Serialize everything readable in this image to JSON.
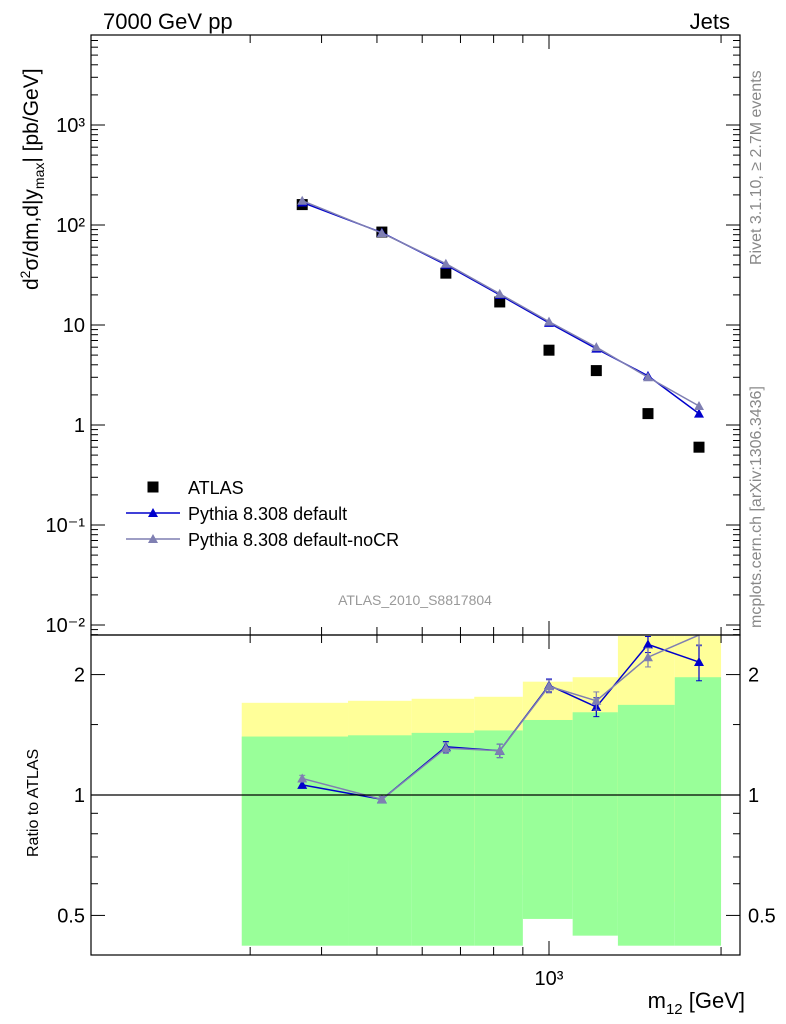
{
  "header": {
    "left": "7000 GeV pp",
    "right": "Jets"
  },
  "side_text": {
    "top": "Rivet 3.1.10, ≥ 2.7M events",
    "bottom": "mcplots.cern.ch [arXiv:1306.3436]"
  },
  "analysis_label": "ATLAS_2010_S8817804",
  "chart_data": [
    {
      "type": "scatter",
      "panel": "main",
      "ylabel": "d²σ/dm,d|y_max| [pb/GeV]",
      "y_scale": "log",
      "ylim": [
        0.008,
        8000
      ],
      "y_ticks": [
        {
          "v": 0.01,
          "label": "10⁻²"
        },
        {
          "v": 0.1,
          "label": "10⁻¹"
        },
        {
          "v": 1,
          "label": "1"
        },
        {
          "v": 10,
          "label": "10"
        },
        {
          "v": 100,
          "label": "10²"
        },
        {
          "v": 1000,
          "label": "10³"
        }
      ],
      "x_scale": "log",
      "xlim": [
        260,
        1950
      ],
      "x": [
        370,
        510,
        660,
        820,
        1000,
        1210,
        1490,
        1830
      ],
      "x_edges": [
        290,
        445,
        575,
        740,
        900,
        1100,
        1320,
        1660,
        2000
      ],
      "series": [
        {
          "name": "ATLAS",
          "color": "#000000",
          "marker": "square",
          "values": [
            160,
            85,
            33,
            17,
            5.6,
            3.5,
            1.3,
            0.6
          ]
        },
        {
          "name": "Pythia 8.308 default",
          "color": "#0000cc",
          "marker": "triangle",
          "values": [
            168,
            84,
            40,
            20,
            10.5,
            5.8,
            3.1,
            1.3
          ]
        },
        {
          "name": "Pythia 8.308 default-noCR",
          "color": "#7f7fb2",
          "marker": "triangle",
          "values": [
            175,
            83,
            41,
            20.5,
            10.8,
            6.0,
            3.0,
            1.55
          ]
        }
      ],
      "legend_position": "bottom-left"
    },
    {
      "type": "line",
      "panel": "ratio",
      "ylabel": "Ratio to ATLAS",
      "y_scale": "log",
      "ylim": [
        0.42,
        2.5
      ],
      "y_ticks": [
        {
          "v": 0.5,
          "label": "0.5"
        },
        {
          "v": 1,
          "label": "1"
        },
        {
          "v": 2,
          "label": "2"
        }
      ],
      "xlabel": "m₁₂ [GeV]",
      "x_ticks": [
        {
          "v": 1000,
          "label": "10³"
        }
      ],
      "x": [
        370,
        510,
        660,
        820,
        1000,
        1210,
        1490,
        1830
      ],
      "band_yellow": {
        "lo": [
          0.69,
          0.685,
          0.67,
          0.65,
          0.63,
          0.58,
          0.54,
          0.54
        ],
        "hi": [
          1.7,
          1.72,
          1.74,
          1.76,
          1.92,
          1.97,
          2.5,
          2.5
        ]
      },
      "band_green": {
        "lo": [
          0.42,
          0.42,
          0.42,
          0.42,
          0.49,
          0.445,
          0.42,
          0.42
        ],
        "hi": [
          1.4,
          1.41,
          1.43,
          1.45,
          1.54,
          1.61,
          1.68,
          1.97
        ]
      },
      "series": [
        {
          "name": "Pythia 8.308 default",
          "color": "#0000cc",
          "values": [
            1.06,
            0.975,
            1.32,
            1.29,
            1.88,
            1.66,
            2.38,
            2.15
          ],
          "err": [
            0.02,
            0.015,
            0.04,
            0.05,
            0.07,
            0.09,
            0.11,
            0.22
          ]
        },
        {
          "name": "Pythia 8.308 default-noCR",
          "color": "#7f7fb2",
          "values": [
            1.1,
            0.975,
            1.31,
            1.29,
            1.87,
            1.72,
            2.21,
            2.6
          ],
          "err": [
            0.02,
            0.015,
            0.04,
            0.05,
            0.07,
            0.09,
            0.12,
            0.24
          ]
        }
      ],
      "reference_line": 1
    }
  ]
}
